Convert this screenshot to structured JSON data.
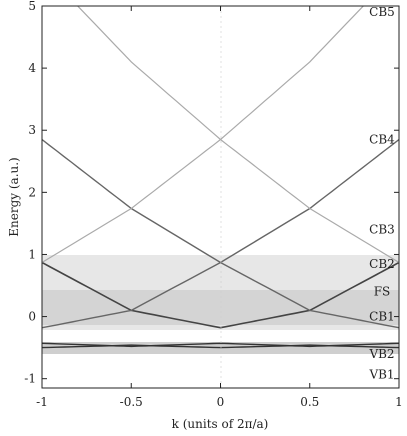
{
  "chart_data": {
    "type": "line",
    "xlabel": "k (units of 2π/a)",
    "ylabel": "Energy (a.u.)",
    "xlim": [
      -1,
      1
    ],
    "ylim": [
      -1.15,
      5
    ],
    "x_ticks": [
      "-1",
      "-0.5",
      "0",
      "0.5",
      "1"
    ],
    "y_ticks": [
      "-1",
      "0",
      "1",
      "2",
      "3",
      "4",
      "5"
    ],
    "grid": false,
    "band_labels": [
      {
        "name": "CB5",
        "energy": 4.9
      },
      {
        "name": "CB4",
        "energy": 2.85
      },
      {
        "name": "CB3",
        "energy": 1.4
      },
      {
        "name": "CB2",
        "energy": 0.85
      },
      {
        "name": "FS",
        "energy": 0.4
      },
      {
        "name": "CB1",
        "energy": 0.0
      },
      {
        "name": "VB2",
        "energy": -0.6
      },
      {
        "name": "VB1",
        "energy": -0.93
      }
    ],
    "series": [
      {
        "values_desc": "CB1 parabola",
        "x": [
          -1,
          -0.5,
          0,
          0.5,
          1
        ],
        "y": [
          0.87,
          0.1,
          -0.18,
          0.1,
          0.87
        ]
      },
      {
        "values_desc": "CB2 left-shifted parabola",
        "x": [
          -1,
          -0.5,
          0,
          0.5,
          1
        ],
        "y": [
          -0.18,
          0.1,
          0.87,
          1.74,
          2.85
        ]
      },
      {
        "values_desc": "CB2 right-shifted parabola",
        "x": [
          -1,
          -0.5,
          0,
          0.5,
          1
        ],
        "y": [
          2.85,
          1.74,
          0.87,
          0.1,
          -0.18
        ]
      },
      {
        "values_desc": "CB3 second-order left",
        "x": [
          -1,
          -0.5,
          0,
          0.5,
          1
        ],
        "y": [
          0.87,
          1.74,
          2.85,
          4.1,
          5.6
        ]
      },
      {
        "values_desc": "CB3 second-order right",
        "x": [
          -1,
          -0.5,
          0,
          0.5,
          1
        ],
        "y": [
          5.6,
          4.1,
          2.85,
          1.74,
          0.87
        ]
      },
      {
        "values_desc": "VB2 band",
        "x": [
          -1,
          -0.5,
          0,
          0.5,
          1
        ],
        "y": [
          -0.43,
          -0.48,
          -0.43,
          -0.48,
          -0.43
        ]
      },
      {
        "values_desc": "VB1 band",
        "x": [
          -1,
          -0.5,
          0,
          0.5,
          1
        ],
        "y": [
          -0.5,
          -0.46,
          -0.5,
          -0.46,
          -0.5
        ]
      }
    ]
  }
}
